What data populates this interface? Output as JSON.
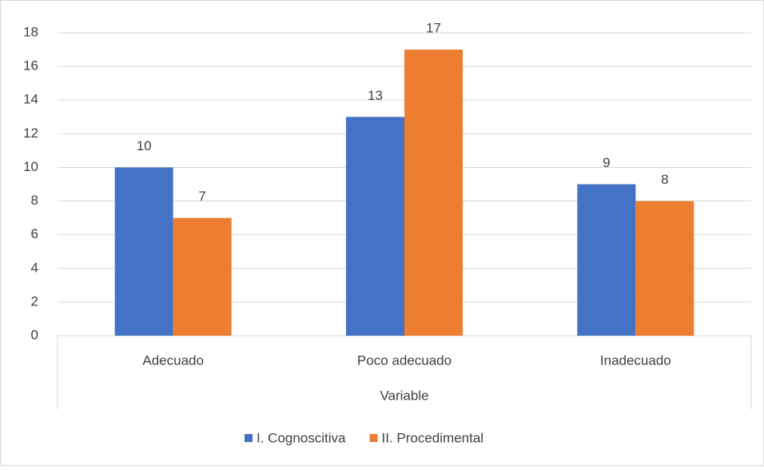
{
  "chart_data": {
    "type": "bar",
    "categories": [
      "Adecuado",
      "Poco adecuado",
      "Inadecuado"
    ],
    "x_label": "Variable",
    "series": [
      {
        "name": "I. Cognoscitiva",
        "color": "#4472c4",
        "values": [
          10,
          13,
          9
        ]
      },
      {
        "name": "II. Procedimental",
        "color": "#ed7d31",
        "values": [
          7,
          17,
          8
        ]
      }
    ],
    "ylim": [
      0,
      18
    ],
    "yticks": [
      0,
      2,
      4,
      6,
      8,
      10,
      12,
      14,
      16,
      18
    ],
    "grid": true,
    "legend": "bottom"
  }
}
